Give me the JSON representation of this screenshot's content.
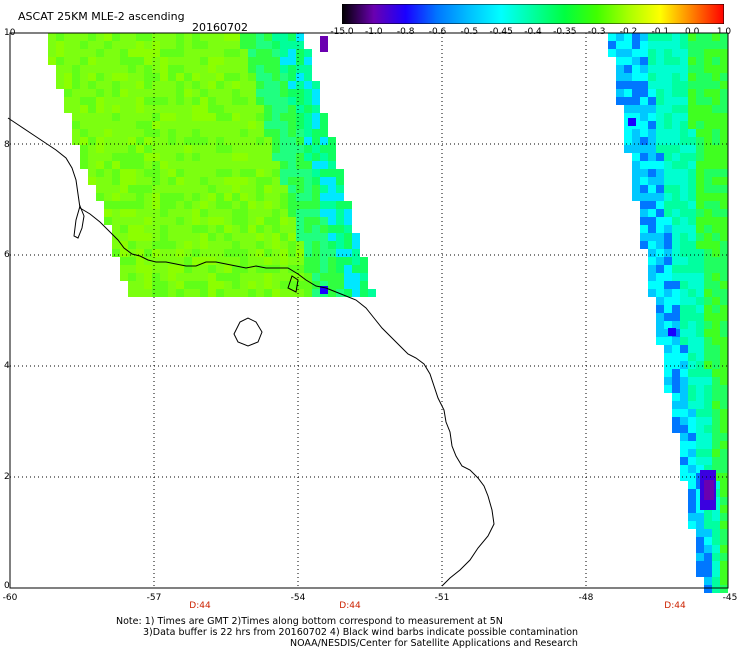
{
  "header": {
    "title": "ASCAT 25KM MLE-2 ascending",
    "date": "20160702"
  },
  "colorbar": {
    "labels": [
      "-15.0",
      "-1.0",
      "-0.8",
      "-0.6",
      "-0.5",
      "-0.45",
      "-0.4",
      "-0.35",
      "-0.3",
      "-0.2",
      "-0.1",
      "0.0",
      "1.0"
    ],
    "colors": [
      "#000000",
      "#6a00b0",
      "#1a00ff",
      "#0077ff",
      "#00c0ff",
      "#00ffff",
      "#00ffa0",
      "#00ff40",
      "#40ff00",
      "#a8ff00",
      "#ffff00",
      "#ff8000",
      "#ff0000"
    ]
  },
  "axes": {
    "lat_labels": [
      "10",
      "8",
      "6",
      "4",
      "2",
      "0"
    ],
    "lon_labels": [
      "-60",
      "-57",
      "-54",
      "-51",
      "-48",
      "-45"
    ],
    "pass_labels": [
      "D:44",
      "D:44",
      "D:44"
    ],
    "lon_range": [
      -60,
      -45
    ],
    "lat_range": [
      0,
      10
    ],
    "grid": true
  },
  "notes": {
    "line1": "Note: 1) Times are GMT 2)Times along bottom correspond to measurement at 5N",
    "line2": "3)Data buffer is 22 hrs from 20160702 4) Black wind barbs indicate possible contamination",
    "line3": "NOAA/NESDIS/Center for Satellite Applications and Research"
  }
}
